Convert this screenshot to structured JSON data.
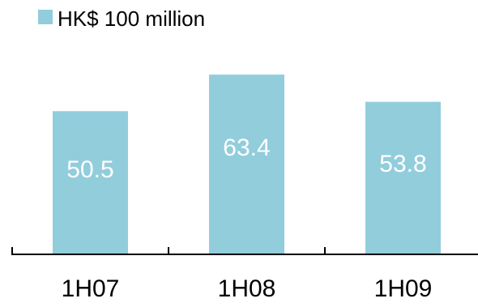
{
  "chart_data": {
    "type": "bar",
    "categories": [
      "1H07",
      "1H08",
      "1H09"
    ],
    "values": [
      50.5,
      63.4,
      53.8
    ],
    "value_labels": [
      "50.5",
      "63.4",
      "53.8"
    ],
    "legend": {
      "label": "HK$ 100 million",
      "placement": "top-left"
    },
    "title": "",
    "xlabel": "",
    "ylabel": "",
    "ylim": [
      0,
      70
    ],
    "grid": false
  },
  "colors": {
    "bar": "#92CDDC",
    "axis": "#000000",
    "bar_label": "#ffffff"
  }
}
